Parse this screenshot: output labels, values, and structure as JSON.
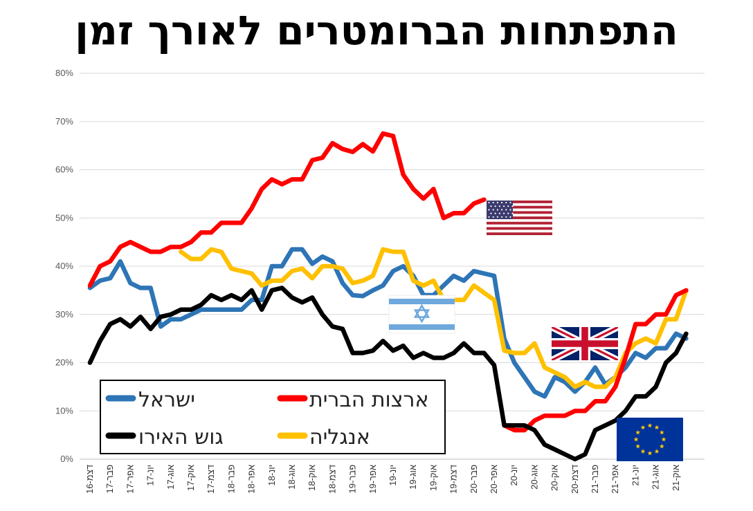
{
  "chart_data": {
    "type": "line",
    "title": "התפתחות הברומטרים לאורך זמן",
    "xlabel": "",
    "ylabel": "",
    "ylim": [
      0,
      80
    ],
    "y_ticks": [
      "0%",
      "10%",
      "20%",
      "30%",
      "40%",
      "50%",
      "60%",
      "70%",
      "80%"
    ],
    "x_tick_labels": [
      "דצמ-16",
      "פבר-17",
      "אפר-17",
      "יונ-17",
      "אוג-17",
      "אוק-17",
      "דצמ-17",
      "פבר-18",
      "אפר-18",
      "יונ-18",
      "אוג-18",
      "אוק-18",
      "דצמ-18",
      "פבר-19",
      "אפר-19",
      "יונ-19",
      "אוג-19",
      "אוק-19",
      "דצמ-19",
      "פבר-20",
      "אפר-20",
      "יונ-20",
      "אוג-20",
      "אוק-20",
      "דצמ-20",
      "פבר-21",
      "אפר-21",
      "יונ-21",
      "אוג-21",
      "אוק-21"
    ],
    "x_months": [
      "2016-12",
      "2017-01",
      "2017-02",
      "2017-03",
      "2017-04",
      "2017-05",
      "2017-06",
      "2017-07",
      "2017-08",
      "2017-09",
      "2017-10",
      "2017-11",
      "2017-12",
      "2018-01",
      "2018-02",
      "2018-03",
      "2018-04",
      "2018-05",
      "2018-06",
      "2018-07",
      "2018-08",
      "2018-09",
      "2018-10",
      "2018-11",
      "2018-12",
      "2019-01",
      "2019-02",
      "2019-03",
      "2019-04",
      "2019-05",
      "2019-06",
      "2019-07",
      "2019-08",
      "2019-09",
      "2019-10",
      "2019-11",
      "2019-12",
      "2020-01",
      "2020-02",
      "2020-03",
      "2020-04",
      "2020-05",
      "2020-06",
      "2020-07",
      "2020-08",
      "2020-09",
      "2020-10",
      "2020-11",
      "2020-12",
      "2021-01",
      "2021-02",
      "2021-03",
      "2021-04",
      "2021-05",
      "2021-06",
      "2021-07",
      "2021-08",
      "2021-09",
      "2021-10",
      "2021-11"
    ],
    "series": [
      {
        "name": "ישראל",
        "color": "#2e75b6",
        "values": [
          35.5,
          37,
          37.5,
          41,
          36.5,
          35.5,
          35.5,
          27.5,
          29,
          29,
          30,
          31,
          31,
          31,
          31,
          31,
          33,
          33,
          40,
          40,
          43.5,
          43.5,
          40.5,
          42,
          41,
          36.5,
          34,
          33.8,
          35,
          36,
          39,
          40,
          38,
          34,
          34,
          36,
          38,
          37,
          39,
          38.5,
          38,
          25,
          20,
          17,
          14,
          13,
          17,
          16,
          14,
          16,
          19,
          15.5,
          17,
          19,
          22,
          21,
          23,
          23,
          26,
          25
        ]
      },
      {
        "name": "ארצות הברית",
        "color": "#ff0000",
        "values": [
          36,
          40,
          41,
          44,
          45,
          44,
          43,
          43,
          44,
          44,
          45,
          47,
          47,
          49,
          49,
          49,
          52,
          56,
          58,
          57,
          58,
          58,
          62,
          62.5,
          65.5,
          64.3,
          63.7,
          65.3,
          63.8,
          67.5,
          67,
          59,
          56,
          54,
          56,
          50,
          51,
          51,
          53,
          53.8,
          null,
          7,
          6,
          6,
          8,
          9,
          9,
          9,
          10,
          10,
          12,
          12,
          15,
          21,
          28,
          28,
          30,
          30,
          34,
          35
        ]
      },
      {
        "name": "גוש האירו",
        "color": "#000000",
        "values": [
          20,
          24.5,
          28,
          29,
          27.5,
          29.5,
          27,
          29.5,
          30,
          31,
          31,
          32,
          34,
          33,
          34,
          33,
          35,
          31,
          35,
          35.5,
          33.5,
          32.5,
          33.5,
          30,
          27.5,
          27,
          22,
          22,
          22.5,
          24.5,
          22.5,
          23.5,
          21,
          22,
          21,
          21,
          22,
          24,
          22,
          22,
          19.5,
          7,
          7,
          7,
          6,
          3,
          2,
          1,
          0,
          1,
          6,
          7,
          8,
          10,
          13,
          13,
          15,
          20,
          22,
          26
        ]
      },
      {
        "name": "אנגליה",
        "color": "#ffc000",
        "values": [
          null,
          null,
          null,
          null,
          null,
          null,
          null,
          null,
          null,
          43,
          41.5,
          41.5,
          43.5,
          43,
          39.5,
          39,
          38.5,
          36,
          37,
          37,
          39,
          39.5,
          37.5,
          40,
          40,
          39.5,
          36.5,
          37,
          38,
          43.5,
          43,
          43,
          37,
          36,
          37,
          33,
          33,
          33,
          36,
          34.5,
          33,
          22.5,
          22,
          22,
          24,
          19,
          18,
          17,
          15,
          16,
          15,
          15,
          17,
          22,
          24,
          25,
          24,
          29,
          29,
          35
        ]
      }
    ],
    "legend": {
      "position": "bottom-left",
      "entries": [
        "ישראל",
        "ארצות הברית",
        "גוש האירו",
        "אנגליה"
      ]
    },
    "grid": true
  }
}
